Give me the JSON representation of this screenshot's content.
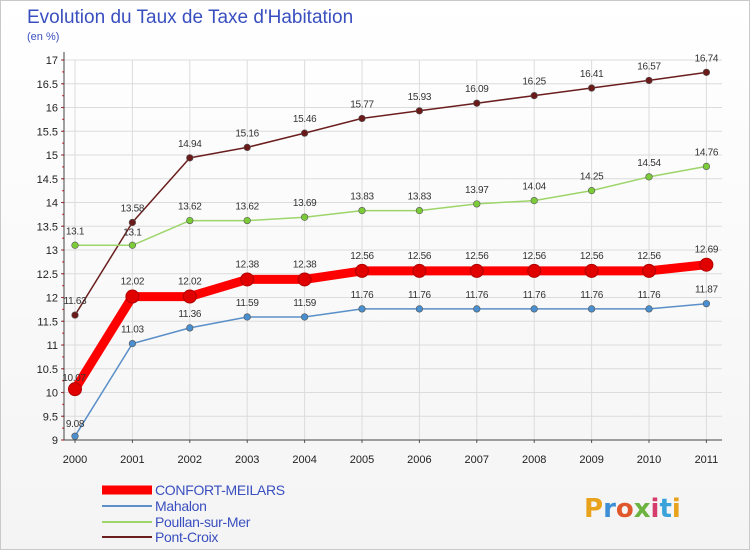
{
  "header": {
    "title": "Evolution du Taux de Taxe d'Habitation",
    "subtitle": "(en %)"
  },
  "logo": {
    "text": "Proxiti",
    "colors": [
      "#e8a21c",
      "#3f8fd6",
      "#e0572b",
      "#6cb33f",
      "#d43c6b",
      "#3aa3d9",
      "#e8a21c"
    ]
  },
  "chart_data": {
    "type": "line",
    "title": "Evolution du Taux de Taxe d'Habitation",
    "subtitle": "(en %)",
    "xlabel": "",
    "ylabel": "",
    "x": [
      "2000",
      "2001",
      "2002",
      "2003",
      "2004",
      "2005",
      "2006",
      "2007",
      "2008",
      "2009",
      "2010",
      "2011"
    ],
    "ylim": [
      9,
      17
    ],
    "yticks": [
      "9",
      "9.5",
      "10",
      "10.5",
      "11",
      "11.5",
      "12",
      "12.5",
      "13",
      "13.5",
      "14",
      "14.5",
      "15",
      "15.5",
      "16",
      "16.5",
      "17"
    ],
    "grid": true,
    "legend_position": "bottom-left",
    "series": [
      {
        "name": "CONFORT-MEILARS",
        "color": "#ff0000",
        "marker_color": "#e00000",
        "emphasis": true,
        "values": [
          10.07,
          12.02,
          12.02,
          12.38,
          12.38,
          12.56,
          12.56,
          12.56,
          12.56,
          12.56,
          12.56,
          12.69
        ],
        "labels": [
          "10.07",
          "12.02",
          "12.02",
          "12.38",
          "12.38",
          "12.56",
          "12.56",
          "12.56",
          "12.56",
          "12.56",
          "12.56",
          "12.69"
        ]
      },
      {
        "name": "Mahalon",
        "color": "#5a8fc8",
        "marker_color": "#4a90d0",
        "emphasis": false,
        "values": [
          9.08,
          11.03,
          11.36,
          11.59,
          11.59,
          11.76,
          11.76,
          11.76,
          11.76,
          11.76,
          11.76,
          11.87
        ],
        "labels": [
          "9.08",
          "11.03",
          "11.36",
          "11.59",
          "11.59",
          "11.76",
          "11.76",
          "11.76",
          "11.76",
          "11.76",
          "11.76",
          "11.87"
        ]
      },
      {
        "name": "Poullan-sur-Mer",
        "color": "#9ed56a",
        "marker_color": "#7ccc3a",
        "emphasis": false,
        "values": [
          13.1,
          13.1,
          13.62,
          13.62,
          13.69,
          13.83,
          13.83,
          13.97,
          14.04,
          14.25,
          14.54,
          14.76
        ],
        "labels": [
          "13.1",
          "13.1",
          "13.62",
          "13.62",
          "13.69",
          "13.83",
          "13.83",
          "13.97",
          "14.04",
          "14.25",
          "14.54",
          "14.76"
        ]
      },
      {
        "name": "Pont-Croix",
        "color": "#6b1e1e",
        "marker_color": "#6b1a1a",
        "emphasis": false,
        "values": [
          11.63,
          13.58,
          14.94,
          15.16,
          15.46,
          15.77,
          15.93,
          16.09,
          16.25,
          16.41,
          16.57,
          16.74
        ],
        "labels": [
          "11.63",
          "13.58",
          "14.94",
          "15.16",
          "15.46",
          "15.77",
          "15.93",
          "16.09",
          "16.25",
          "16.41",
          "16.57",
          "16.74"
        ]
      }
    ]
  }
}
